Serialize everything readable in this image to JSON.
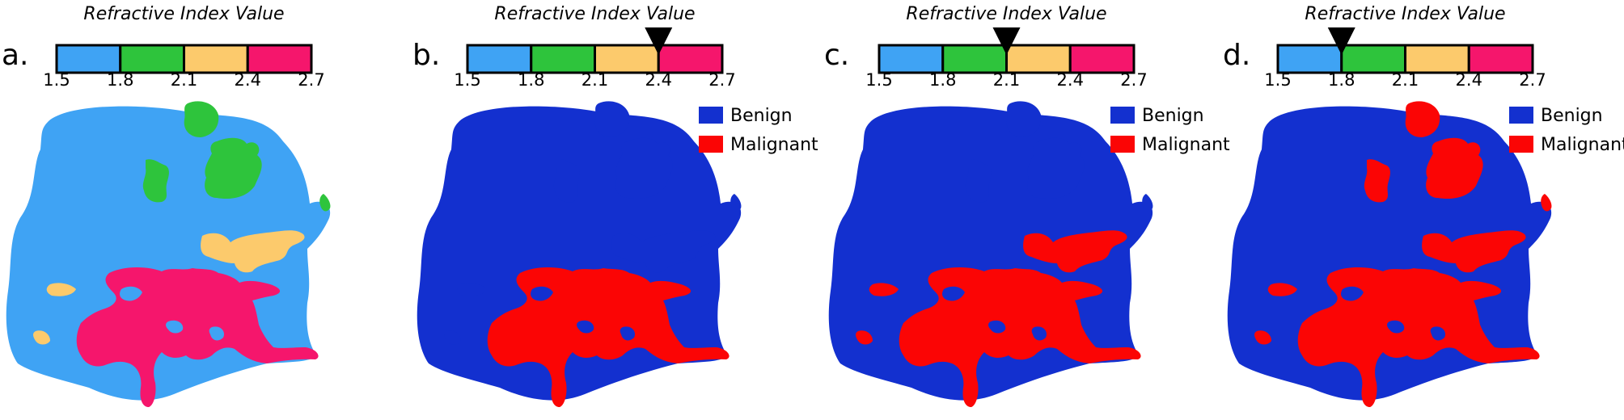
{
  "colorbar": {
    "title": "Refractive Index Value",
    "ticks": [
      "1.5",
      "1.8",
      "2.1",
      "2.4",
      "2.7"
    ],
    "tick_values": [
      1.5,
      1.8,
      2.1,
      2.4,
      2.7
    ],
    "bins": [
      {
        "from": 1.5,
        "to": 1.8,
        "color": "#3fa3f4"
      },
      {
        "from": 1.8,
        "to": 2.1,
        "color": "#2ec43c"
      },
      {
        "from": 2.1,
        "to": 2.4,
        "color": "#fcca6c"
      },
      {
        "from": 2.4,
        "to": 2.7,
        "color": "#f5166c"
      }
    ]
  },
  "legend": {
    "benign_label": "Benign",
    "malignant_label": "Malignant",
    "benign_color": "#1330cf",
    "malignant_color": "#fb0505"
  },
  "panels": [
    {
      "label": "a.",
      "mode": "refractive-index-map",
      "threshold": null
    },
    {
      "label": "b.",
      "mode": "binary",
      "threshold": 2.4
    },
    {
      "label": "c.",
      "mode": "binary",
      "threshold": 2.1
    },
    {
      "label": "d.",
      "mode": "binary",
      "threshold": 1.8
    }
  ]
}
